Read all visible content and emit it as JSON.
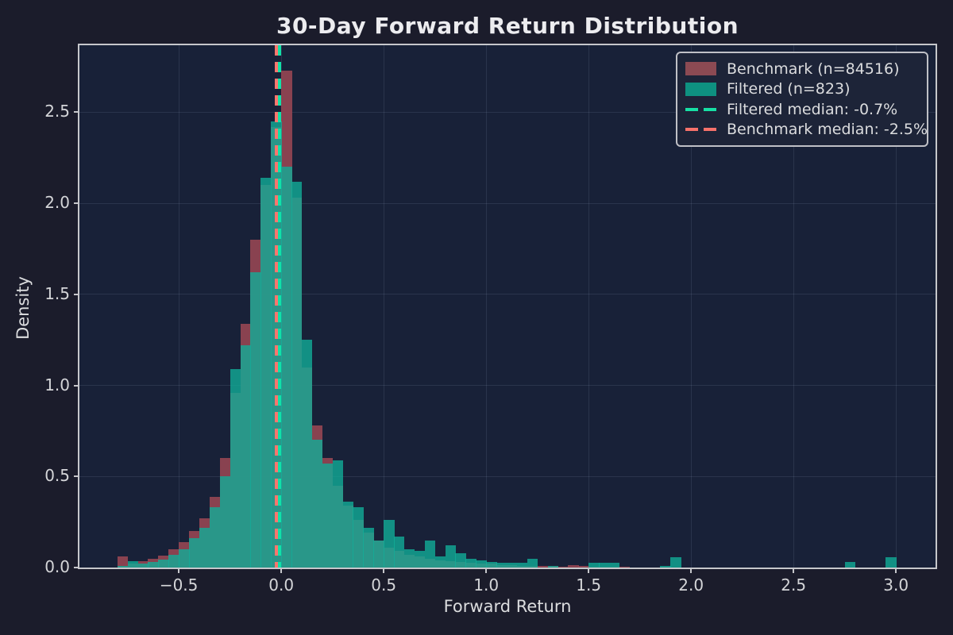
{
  "title": "30-Day Forward Return Distribution",
  "axes": {
    "xlabel": "Forward Return",
    "ylabel": "Density"
  },
  "legend": {
    "items": [
      {
        "type": "patch",
        "color": "#8C4A53",
        "label": "Benchmark (n=84516)"
      },
      {
        "type": "patch",
        "color": "#0E9180",
        "label": "Filtered (n=823)"
      },
      {
        "type": "dash",
        "color": "#17E0A5",
        "label": "Filtered median: -0.7%"
      },
      {
        "type": "dash",
        "color": "#F7726B",
        "label": "Benchmark median: -2.5%"
      }
    ]
  },
  "colors": {
    "figure_background": "#1B1C2B",
    "axes_background": "#182138",
    "spine": "#C6C7CB",
    "text": "#DBDCDE",
    "title_text": "#ECECEF",
    "grid": "rgba(170,184,214,0.13)",
    "benchmark_fill": "rgba(158,72,85,0.85)",
    "filtered_fill": "rgba(17,173,151,0.80)",
    "filtered_median_line": "#10E2A8",
    "benchmark_median_line": "#F9766D"
  },
  "chart_data": {
    "type": "bar",
    "variant": "overlaid-histogram-density",
    "title": "30-Day Forward Return Distribution",
    "xlabel": "Forward Return",
    "ylabel": "Density",
    "xlim": [
      -0.985,
      3.193
    ],
    "ylim": [
      0,
      2.868
    ],
    "grid": true,
    "legend_position": "upper right",
    "x_ticks": [
      {
        "v": -0.5,
        "label": "−0.5"
      },
      {
        "v": 0.0,
        "label": "0.0"
      },
      {
        "v": 0.5,
        "label": "0.5"
      },
      {
        "v": 1.0,
        "label": "1.0"
      },
      {
        "v": 1.5,
        "label": "1.5"
      },
      {
        "v": 2.0,
        "label": "2.0"
      },
      {
        "v": 2.5,
        "label": "2.5"
      },
      {
        "v": 3.0,
        "label": "3.0"
      }
    ],
    "y_ticks": [
      {
        "v": 0.0,
        "label": "0.0"
      },
      {
        "v": 0.5,
        "label": "0.5"
      },
      {
        "v": 1.0,
        "label": "1.0"
      },
      {
        "v": 1.5,
        "label": "1.5"
      },
      {
        "v": 2.0,
        "label": "2.0"
      },
      {
        "v": 2.5,
        "label": "2.5"
      }
    ],
    "bin_start": -0.85,
    "bin_width": 0.05,
    "series": [
      {
        "name": "Benchmark (n=84516)",
        "n": 84516,
        "fill": "rgba(158,72,85,0.85)",
        "values": [
          0,
          0.06,
          0.02,
          0.035,
          0.05,
          0.065,
          0.1,
          0.14,
          0.2,
          0.27,
          0.39,
          0.6,
          0.96,
          1.34,
          1.8,
          2.1,
          2.42,
          2.73,
          2.03,
          1.1,
          0.78,
          0.6,
          0.45,
          0.34,
          0.26,
          0.19,
          0.15,
          0.11,
          0.09,
          0.07,
          0.06,
          0.05,
          0.04,
          0.035,
          0.03,
          0.025,
          0.02,
          0.02,
          0.015,
          0.012,
          0.01,
          0.01,
          0.008,
          0.008,
          0.006,
          0.012,
          0.008,
          0.005,
          0.005,
          0.004,
          0.003,
          0.002,
          0.002,
          0.002,
          0.001,
          0.001,
          0.001,
          0.001,
          0.001,
          0,
          0,
          0.001,
          0,
          0,
          0.001,
          0,
          0,
          0,
          0,
          0,
          0,
          0,
          0.001,
          0,
          0,
          0,
          0.002,
          0,
          0
        ]
      },
      {
        "name": "Filtered (n=823)",
        "n": 823,
        "fill": "rgba(17,173,151,0.80)",
        "values": [
          0,
          0.01,
          0.035,
          0.02,
          0.03,
          0.045,
          0.07,
          0.1,
          0.16,
          0.22,
          0.33,
          0.5,
          1.09,
          1.22,
          1.62,
          2.14,
          2.45,
          2.2,
          2.12,
          1.25,
          0.7,
          0.57,
          0.59,
          0.36,
          0.33,
          0.22,
          0.15,
          0.26,
          0.17,
          0.1,
          0.09,
          0.15,
          0.06,
          0.12,
          0.08,
          0.05,
          0.04,
          0.03,
          0.025,
          0.025,
          0.025,
          0.05,
          0,
          0.01,
          0,
          0,
          0,
          0.025,
          0.025,
          0.025,
          0,
          0,
          0,
          0,
          0.01,
          0.055,
          0,
          0,
          0,
          0,
          0,
          0,
          0,
          0,
          0,
          0,
          0,
          0,
          0,
          0,
          0,
          0,
          0.03,
          0,
          0,
          0,
          0.055,
          0,
          0
        ]
      }
    ],
    "median_lines": [
      {
        "name": "Filtered median",
        "value": -0.007,
        "label": "-0.7%",
        "color": "#10E2A8"
      },
      {
        "name": "Benchmark median",
        "value": -0.025,
        "label": "-2.5%",
        "color": "#F9766D"
      }
    ]
  }
}
